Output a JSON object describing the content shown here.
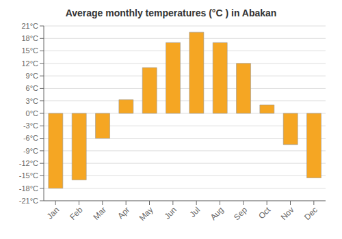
{
  "chart_data": {
    "type": "bar",
    "title": "Average monthly temperatures (°C ) in Abakan",
    "categories": [
      "Jan",
      "Feb",
      "Mar",
      "Apr",
      "May",
      "Jun",
      "Jul",
      "Aug",
      "Sep",
      "Oct",
      "Nov",
      "Dec"
    ],
    "values": [
      -18,
      -16,
      -6,
      3.3,
      11,
      17,
      19.5,
      17,
      12,
      2,
      -7.5,
      -15.5
    ],
    "color": "#F5A623",
    "ylim": [
      -21,
      21
    ],
    "yticks": [
      {
        "value": -21,
        "label": "-21°C"
      },
      {
        "value": -18,
        "label": "-18°C"
      },
      {
        "value": -15,
        "label": "-15°C"
      },
      {
        "value": -12,
        "label": "-12°C"
      },
      {
        "value": -9,
        "label": "-9°C"
      },
      {
        "value": -6,
        "label": "-6°C"
      },
      {
        "value": -3,
        "label": "-3°C"
      },
      {
        "value": 0,
        "label": "0°C"
      },
      {
        "value": 3,
        "label": "3°C"
      },
      {
        "value": 6,
        "label": "6°C"
      },
      {
        "value": 9,
        "label": "9°C"
      },
      {
        "value": 12,
        "label": "12°C"
      },
      {
        "value": 15,
        "label": "15°C"
      },
      {
        "value": 18,
        "label": "18°C"
      },
      {
        "value": 21,
        "label": "21°C"
      }
    ],
    "grid": true
  }
}
